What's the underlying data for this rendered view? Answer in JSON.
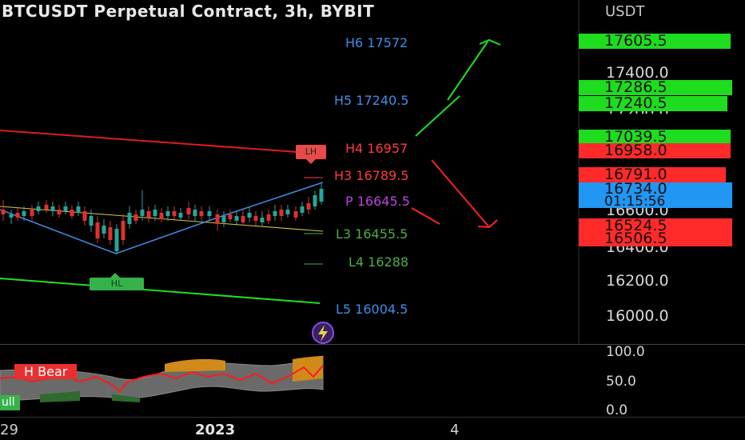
{
  "header": {
    "title": "BTCUSDT Perpetual Contract, 3h, BYBIT"
  },
  "price_axis": {
    "currency": "USDT",
    "ticks": [
      "17400.0",
      "17200.0",
      "16600.0",
      "16400.0",
      "16200.0",
      "16000.0"
    ]
  },
  "price_tags": [
    {
      "label": "17605.5",
      "color": "#1edc1e"
    },
    {
      "label": "17286.5",
      "color": "#1edc1e"
    },
    {
      "label": "17240.5",
      "color": "#1edc1e"
    },
    {
      "label": "17039.5",
      "color": "#1edc1e"
    },
    {
      "label": "16958.0",
      "color": "#ff2a2a"
    },
    {
      "label": "16791.0",
      "color": "#ff2a2a"
    },
    {
      "label": "16734.0",
      "sub": "01:15:56",
      "color": "#2196f3"
    },
    {
      "label": "16524.5",
      "color": "#ff2a2a"
    },
    {
      "label": "16506.5",
      "color": "#ff2a2a"
    }
  ],
  "pivots": [
    {
      "label": "H6 17572",
      "color": "#3f8fe8"
    },
    {
      "label": "H5 17240.5",
      "color": "#3f8fe8"
    },
    {
      "label": "H4 16957",
      "color": "#ff3b3b"
    },
    {
      "label": "H3 16789.5",
      "color": "#ff3b3b"
    },
    {
      "label": "P 16645.5",
      "color": "#c040e0"
    },
    {
      "label": "L3 16455.5",
      "color": "#4cae4c"
    },
    {
      "label": "L4 16288",
      "color": "#4cae4c"
    },
    {
      "label": "L5 16004.5",
      "color": "#3f8fe8"
    }
  ],
  "markers": {
    "lh": "LH",
    "hl": "HL"
  },
  "oscillator": {
    "ticks": [
      "100.0",
      "50.0",
      "0.0"
    ],
    "bear_label": "H Bear",
    "bull_label": "ull"
  },
  "time_axis": {
    "labels": [
      "29",
      "2023",
      "4"
    ]
  },
  "icons": {
    "alert": "lightning-icon"
  }
}
